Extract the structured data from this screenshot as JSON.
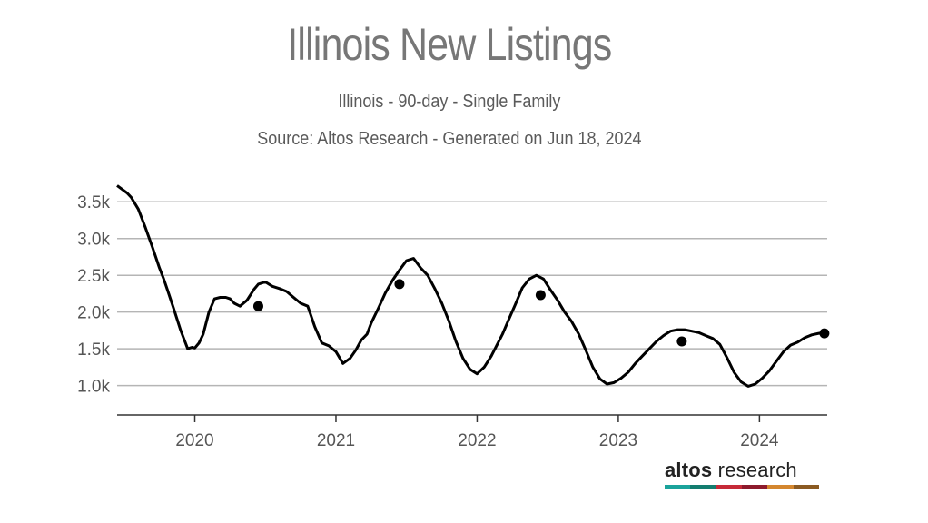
{
  "chart_data": {
    "type": "line",
    "title": "Illinois New Listings",
    "subtitle": "Illinois - 90-day - Single Family",
    "source": "Source: Altos Research - Generated on Jun 18, 2024",
    "xlabel": "",
    "ylabel": "",
    "xlim": [
      2019.45,
      2024.48
    ],
    "ylim": [
      600,
      3750
    ],
    "yticks": [
      1000,
      1500,
      2000,
      2500,
      3000,
      3500
    ],
    "ytick_labels": [
      "1.0k",
      "1.5k",
      "2.0k",
      "2.5k",
      "3.0k",
      "3.5k"
    ],
    "xticks": [
      2020,
      2021,
      2022,
      2023,
      2024
    ],
    "xtick_labels": [
      "2020",
      "2021",
      "2022",
      "2023",
      "2024"
    ],
    "grid": "horizontal",
    "legend": "none",
    "line_color": "#000000",
    "series": [
      {
        "x": [
          2019.45,
          2019.52,
          2019.55,
          2019.6,
          2019.65,
          2019.7,
          2019.75,
          2019.78,
          2019.81,
          2019.85,
          2019.9,
          2019.95,
          2019.98,
          2020.0,
          2020.03,
          2020.06,
          2020.1,
          2020.14,
          2020.18,
          2020.22,
          2020.25,
          2020.28,
          2020.32,
          2020.37,
          2020.42,
          2020.45,
          2020.5,
          2020.55,
          2020.6,
          2020.65,
          2020.7,
          2020.75,
          2020.8,
          2020.85,
          2020.9,
          2020.95,
          2021.0,
          2021.05,
          2021.1,
          2021.14,
          2021.18,
          2021.22,
          2021.25,
          2021.3,
          2021.35,
          2021.4,
          2021.45,
          2021.5,
          2021.55,
          2021.6,
          2021.65,
          2021.7,
          2021.75,
          2021.8,
          2021.85,
          2021.9,
          2021.95,
          2022.0,
          2022.05,
          2022.1,
          2022.14,
          2022.18,
          2022.22,
          2022.27,
          2022.32,
          2022.37,
          2022.42,
          2022.47,
          2022.52,
          2022.57,
          2022.62,
          2022.67,
          2022.72,
          2022.77,
          2022.82,
          2022.87,
          2022.92,
          2022.97,
          2023.02,
          2023.07,
          2023.12,
          2023.17,
          2023.22,
          2023.27,
          2023.32,
          2023.37,
          2023.42,
          2023.47,
          2023.52,
          2023.57,
          2023.62,
          2023.67,
          2023.72,
          2023.77,
          2023.82,
          2023.87,
          2023.92,
          2023.97,
          2024.02,
          2024.07,
          2024.12,
          2024.17,
          2024.22,
          2024.27,
          2024.32,
          2024.37,
          2024.42,
          2024.46
        ],
        "values": [
          3720,
          3620,
          3560,
          3400,
          3150,
          2880,
          2600,
          2450,
          2280,
          2050,
          1750,
          1500,
          1520,
          1510,
          1580,
          1700,
          2000,
          2180,
          2200,
          2200,
          2180,
          2120,
          2080,
          2160,
          2310,
          2380,
          2410,
          2350,
          2320,
          2280,
          2200,
          2120,
          2080,
          1800,
          1580,
          1540,
          1460,
          1300,
          1370,
          1480,
          1620,
          1700,
          1850,
          2050,
          2260,
          2430,
          2570,
          2700,
          2730,
          2600,
          2500,
          2320,
          2120,
          1880,
          1600,
          1370,
          1220,
          1160,
          1250,
          1400,
          1550,
          1700,
          1880,
          2100,
          2330,
          2450,
          2500,
          2450,
          2300,
          2160,
          2000,
          1870,
          1700,
          1480,
          1250,
          1090,
          1020,
          1040,
          1100,
          1180,
          1300,
          1400,
          1500,
          1600,
          1680,
          1740,
          1760,
          1760,
          1740,
          1720,
          1680,
          1640,
          1560,
          1380,
          1180,
          1050,
          990,
          1020,
          1100,
          1200,
          1330,
          1460,
          1550,
          1590,
          1650,
          1690,
          1710,
          1710
        ]
      }
    ],
    "markers": [
      {
        "x": 2020.45,
        "y": 2080
      },
      {
        "x": 2021.45,
        "y": 2380
      },
      {
        "x": 2022.45,
        "y": 2230
      },
      {
        "x": 2023.45,
        "y": 1600
      },
      {
        "x": 2024.46,
        "y": 1710
      }
    ]
  },
  "logo": {
    "bold": "altos",
    "rest": " research",
    "bar_colors": [
      "#1aa39b",
      "#137d6f",
      "#c62a38",
      "#8d1a2c",
      "#d4862e",
      "#8b5a22"
    ]
  }
}
